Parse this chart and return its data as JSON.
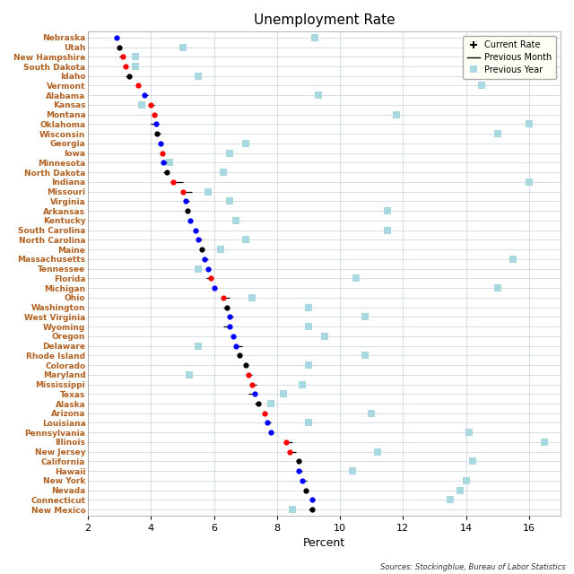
{
  "title": "Unemployment Rate",
  "xlabel": "Percent",
  "source": "Sources: Stockingblue, Bureau of Labor Statistics",
  "xlim": [
    2,
    17
  ],
  "xticks": [
    2,
    4,
    6,
    8,
    10,
    12,
    14,
    16
  ],
  "states": [
    "Nebraska",
    "Utah",
    "New Hampshire",
    "South Dakota",
    "Idaho",
    "Vermont",
    "Alabama",
    "Kansas",
    "Montana",
    "Oklahoma",
    "Wisconsin",
    "Georgia",
    "Iowa",
    "Minnesota",
    "North Dakota",
    "Indiana",
    "Missouri",
    "Virginia",
    "Arkansas",
    "Kentucky",
    "South Carolina",
    "North Carolina",
    "Maine",
    "Massachusetts",
    "Tennessee",
    "Florida",
    "Michigan",
    "Ohio",
    "Washington",
    "West Virginia",
    "Wyoming",
    "Oregon",
    "Delaware",
    "Rhode Island",
    "Colorado",
    "Maryland",
    "Mississippi",
    "Texas",
    "Alaska",
    "Arizona",
    "Louisiana",
    "Pennsylvania",
    "Illinois",
    "New Jersey",
    "California",
    "Hawaii",
    "New York",
    "Nevada",
    "Connecticut",
    "New Mexico"
  ],
  "current_rate": [
    2.9,
    3.0,
    3.1,
    3.2,
    3.3,
    3.6,
    3.8,
    4.0,
    4.1,
    4.15,
    4.2,
    4.3,
    4.35,
    4.4,
    4.5,
    4.7,
    5.0,
    5.1,
    5.15,
    5.25,
    5.4,
    5.5,
    5.6,
    5.7,
    5.8,
    5.9,
    6.0,
    6.3,
    6.4,
    6.5,
    6.5,
    6.6,
    6.7,
    6.8,
    7.0,
    7.1,
    7.2,
    7.3,
    7.4,
    7.6,
    7.7,
    7.8,
    8.3,
    8.4,
    8.7,
    8.7,
    8.8,
    8.9,
    9.1,
    9.1
  ],
  "previous_month": [
    2.85,
    3.0,
    3.0,
    3.1,
    3.2,
    3.6,
    3.9,
    4.1,
    4.2,
    4.0,
    4.3,
    4.4,
    4.35,
    4.5,
    4.4,
    5.0,
    5.3,
    5.2,
    5.15,
    5.3,
    5.5,
    5.6,
    5.55,
    5.8,
    5.9,
    5.75,
    6.1,
    6.5,
    6.3,
    6.6,
    6.3,
    6.7,
    6.9,
    6.8,
    7.0,
    7.2,
    7.35,
    7.1,
    7.3,
    7.7,
    7.8,
    7.9,
    8.5,
    8.6,
    8.65,
    8.8,
    8.95,
    8.85,
    9.2,
    9.0
  ],
  "current_color": [
    "blue",
    "black",
    "red",
    "red",
    "black",
    "red",
    "blue",
    "red",
    "red",
    "blue",
    "black",
    "blue",
    "red",
    "blue",
    "black",
    "red",
    "red",
    "blue",
    "black",
    "blue",
    "blue",
    "blue",
    "black",
    "blue",
    "blue",
    "red",
    "blue",
    "red",
    "black",
    "blue",
    "blue",
    "blue",
    "blue",
    "black",
    "black",
    "red",
    "red",
    "blue",
    "black",
    "red",
    "blue",
    "blue",
    "red",
    "red",
    "black",
    "blue",
    "blue",
    "black",
    "blue",
    "black"
  ],
  "previous_year": [
    9.2,
    5.0,
    3.5,
    3.5,
    5.5,
    14.5,
    9.3,
    3.7,
    11.8,
    16.0,
    15.0,
    7.0,
    6.5,
    4.6,
    6.3,
    16.0,
    5.8,
    6.5,
    11.5,
    6.7,
    11.5,
    7.0,
    6.2,
    15.5,
    5.5,
    10.5,
    15.0,
    7.2,
    9.0,
    10.8,
    9.0,
    9.5,
    5.5,
    10.8,
    9.0,
    5.2,
    8.8,
    8.2,
    7.8,
    11.0,
    9.0,
    14.1,
    16.5,
    11.2,
    14.2,
    10.4,
    14.0,
    13.8,
    13.5,
    8.5
  ],
  "legend_bg": "#fffff5",
  "prev_year_color": "#a8d8e0",
  "state_label_color": "#b06020",
  "bg_color": "#ffffff",
  "grid_color": "#d0d8e0"
}
